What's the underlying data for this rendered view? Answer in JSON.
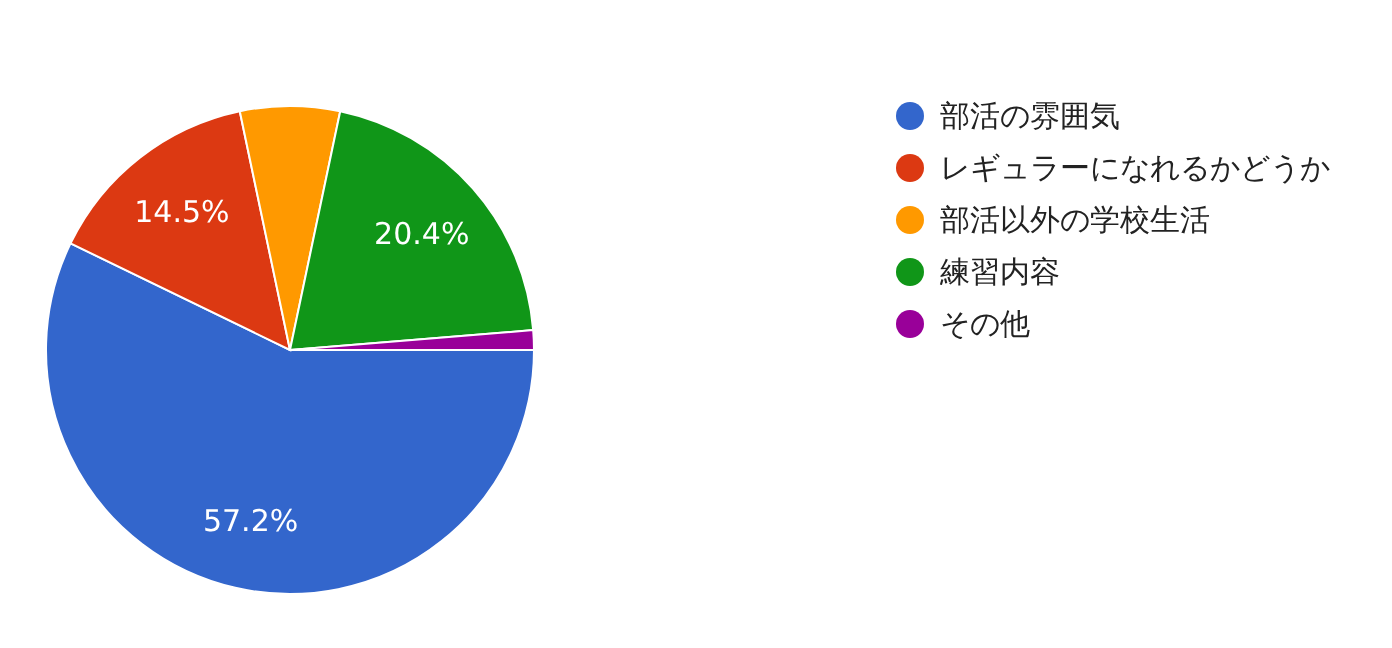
{
  "chart_data": {
    "type": "pie",
    "categories": [
      "部活の雰囲気",
      "レギュラーになれるかどうか",
      "部活以外の学校生活",
      "練習内容",
      "その他"
    ],
    "values": [
      57.2,
      14.5,
      6.6,
      20.4,
      1.3
    ],
    "colors": [
      "#3366cc",
      "#dc3912",
      "#ff9900",
      "#109618",
      "#990099"
    ],
    "value_labels": [
      "57.2%",
      "14.5%",
      null,
      "20.4%",
      null
    ],
    "legend": "right"
  }
}
